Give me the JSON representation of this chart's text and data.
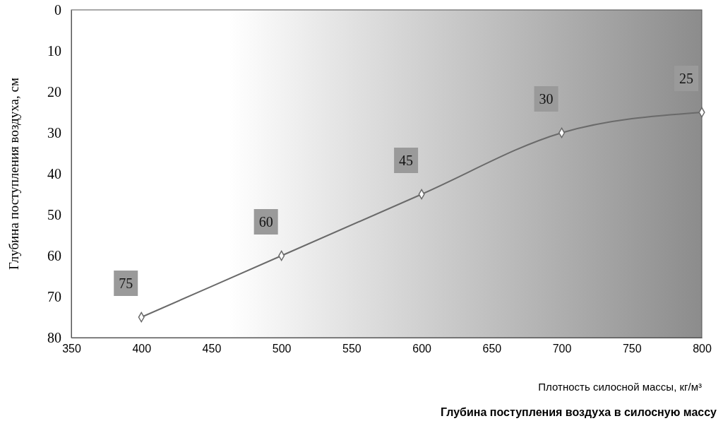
{
  "chart_data": {
    "type": "line",
    "title": "Глубина поступления воздуха в силосную массу",
    "xlabel": "Плотность силосной массы, кг/м³",
    "ylabel": "Глубина поступления воздуха, см",
    "x": [
      400,
      500,
      600,
      700,
      800
    ],
    "series": [
      {
        "color": "#6a6a6a",
        "values": [
          75,
          60,
          45,
          30,
          25
        ]
      }
    ],
    "xlim": [
      350,
      800
    ],
    "xticks": [
      350,
      400,
      450,
      500,
      550,
      600,
      650,
      700,
      750,
      800
    ],
    "ylim": [
      80,
      0
    ],
    "yticks": [
      0,
      10,
      20,
      30,
      40,
      50,
      60,
      70,
      80
    ],
    "grid": false,
    "marker": "diamond",
    "line_style": "solid",
    "data_labels": true
  }
}
